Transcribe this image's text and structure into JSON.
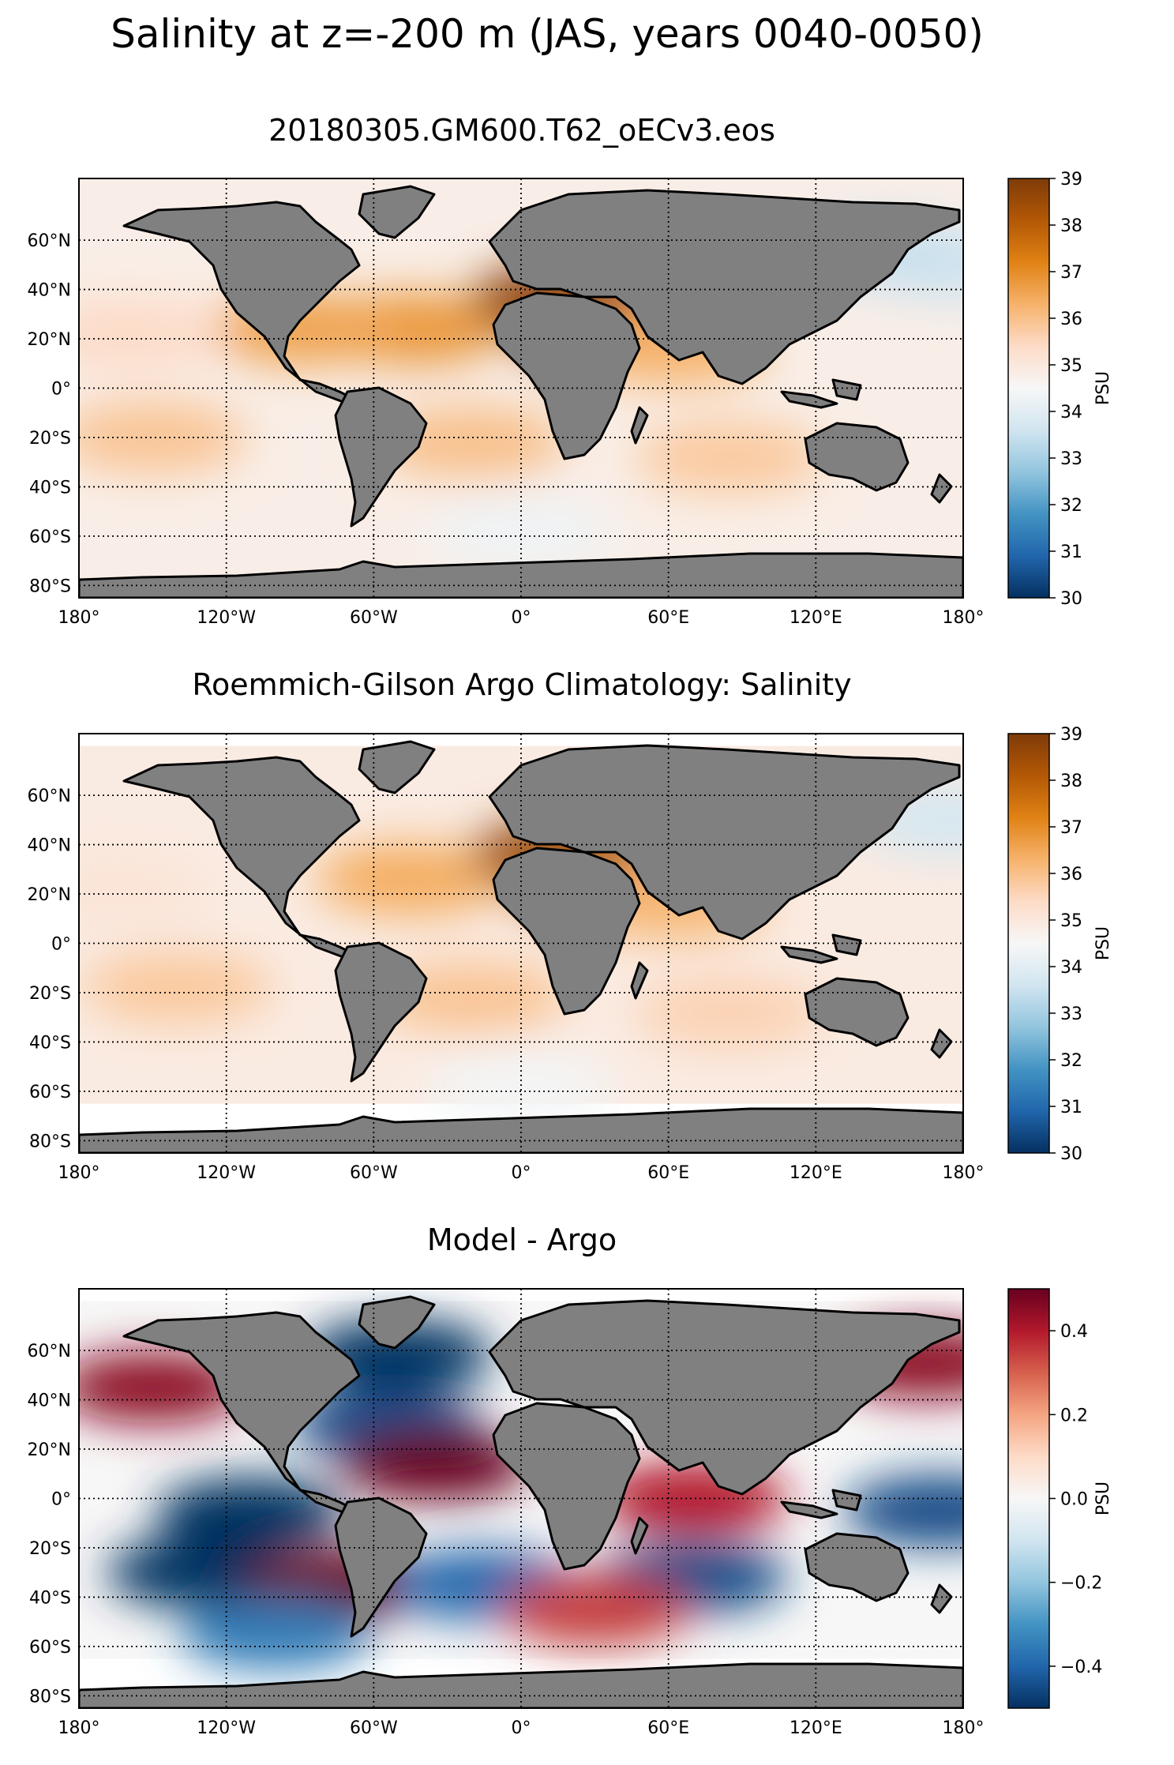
{
  "figure": {
    "suptitle": "Salinity at z=-200 m (JAS, years 0040-0050)"
  },
  "colors": {
    "land": "#808080",
    "coast": "#000000",
    "grid": "#000000"
  },
  "axes_ticks": {
    "lon": [
      "180°",
      "120°W",
      "60°W",
      "0°",
      "60°E",
      "120°E",
      "180°"
    ],
    "lat": [
      "60°N",
      "40°N",
      "20°N",
      "0°",
      "20°S",
      "40°S",
      "60°S",
      "80°S"
    ]
  },
  "chart_data": [
    {
      "type": "heatmap",
      "id": "model",
      "title": "20180305.GM600.T62_oECv3.eos",
      "projection": "equirectangular",
      "lon_range": [
        -180,
        180
      ],
      "lat_range": [
        -85,
        85
      ],
      "colorbar": {
        "label": "PSU",
        "vmin": 30,
        "vmax": 39,
        "ticks": [
          "30",
          "31",
          "32",
          "33",
          "34",
          "35",
          "36",
          "37",
          "38",
          "39"
        ],
        "cmap": [
          "#053061",
          "#2166ac",
          "#4393c3",
          "#92c5de",
          "#d1e5f0",
          "#f7f7f7",
          "#fddbc7",
          "#f6b26b",
          "#e08214",
          "#b35806",
          "#7f3b08"
        ]
      },
      "background_value": 34.8,
      "features": [
        {
          "name": "north-atlantic-subtropical",
          "lon": -45,
          "lat": 24,
          "value": 36.8
        },
        {
          "name": "gulf-of-mexico",
          "lon": -88,
          "lat": 24,
          "value": 36.6
        },
        {
          "name": "mediterranean",
          "lon": 18,
          "lat": 36,
          "value": 38.8
        },
        {
          "name": "red-sea",
          "lon": 38,
          "lat": 20,
          "value": 38.0
        },
        {
          "name": "arabian-sea",
          "lon": 62,
          "lat": 16,
          "value": 36.3
        },
        {
          "name": "south-pacific-gyre",
          "lon": -150,
          "lat": -20,
          "value": 35.9
        },
        {
          "name": "south-atlantic-gyre",
          "lon": -20,
          "lat": -22,
          "value": 36.0
        },
        {
          "name": "south-indian-gyre",
          "lon": 85,
          "lat": -28,
          "value": 35.8
        },
        {
          "name": "north-pacific-gyre",
          "lon": -160,
          "lat": 22,
          "value": 35.4
        },
        {
          "name": "southern-ocean",
          "lon": 0,
          "lat": -58,
          "value": 34.3
        },
        {
          "name": "north-pacific-subpolar",
          "lon": 175,
          "lat": 50,
          "value": 33.6
        },
        {
          "name": "sea-of-okhotsk",
          "lon": 150,
          "lat": 55,
          "value": 33.5
        }
      ]
    },
    {
      "type": "heatmap",
      "id": "argo",
      "title": "Roemmich-Gilson Argo Climatology: Salinity",
      "projection": "equirectangular",
      "lon_range": [
        -180,
        180
      ],
      "lat_range": [
        -85,
        85
      ],
      "data_lat_range": [
        -65,
        80
      ],
      "colorbar": {
        "label": "PSU",
        "vmin": 30,
        "vmax": 39,
        "ticks": [
          "30",
          "31",
          "32",
          "33",
          "34",
          "35",
          "36",
          "37",
          "38",
          "39"
        ],
        "cmap": [
          "#053061",
          "#2166ac",
          "#4393c3",
          "#92c5de",
          "#d1e5f0",
          "#f7f7f7",
          "#fddbc7",
          "#f6b26b",
          "#e08214",
          "#b35806",
          "#7f3b08"
        ]
      },
      "background_value": 34.9,
      "features": [
        {
          "name": "north-atlantic-subtropical",
          "lon": -45,
          "lat": 26,
          "value": 36.4
        },
        {
          "name": "mediterranean",
          "lon": 18,
          "lat": 36,
          "value": 38.6
        },
        {
          "name": "red-sea",
          "lon": 38,
          "lat": 20,
          "value": 37.5
        },
        {
          "name": "arabian-sea",
          "lon": 62,
          "lat": 16,
          "value": 36.2
        },
        {
          "name": "south-pacific-gyre",
          "lon": -140,
          "lat": -18,
          "value": 35.8
        },
        {
          "name": "south-atlantic-gyre",
          "lon": -20,
          "lat": -22,
          "value": 35.9
        },
        {
          "name": "south-indian-gyre",
          "lon": 85,
          "lat": -28,
          "value": 35.6
        },
        {
          "name": "north-pacific-gyre",
          "lon": -165,
          "lat": 22,
          "value": 35.1
        },
        {
          "name": "southern-ocean",
          "lon": 0,
          "lat": -58,
          "value": 34.4
        },
        {
          "name": "north-pacific-subpolar",
          "lon": 175,
          "lat": 50,
          "value": 33.7
        }
      ]
    },
    {
      "type": "heatmap",
      "id": "diff",
      "title": "Model - Argo",
      "projection": "equirectangular",
      "lon_range": [
        -180,
        180
      ],
      "lat_range": [
        -85,
        85
      ],
      "data_lat_range": [
        -65,
        80
      ],
      "colorbar": {
        "label": "PSU",
        "vmin": -0.5,
        "vmax": 0.5,
        "ticks": [
          "−0.4",
          "−0.2",
          "0.0",
          "0.2",
          "0.4"
        ],
        "tick_values": [
          -0.4,
          -0.2,
          0.0,
          0.2,
          0.4
        ],
        "cmap": [
          "#053061",
          "#2166ac",
          "#4393c3",
          "#92c5de",
          "#d1e5f0",
          "#f7f7f7",
          "#fddbc7",
          "#f4a582",
          "#d6604d",
          "#b2182b",
          "#67001f"
        ]
      },
      "background_value": 0.0,
      "features": [
        {
          "name": "eq-pacific-band",
          "lon": -110,
          "lat": -6,
          "value": -0.5
        },
        {
          "name": "eq-pacific-band-west",
          "lon": 170,
          "lat": -5,
          "value": -0.45
        },
        {
          "name": "south-pacific-diagonal",
          "lon": -130,
          "lat": -30,
          "value": -0.5
        },
        {
          "name": "north-pacific-east",
          "lon": -150,
          "lat": 45,
          "value": 0.45
        },
        {
          "name": "north-pacific-west",
          "lon": 165,
          "lat": 55,
          "value": 0.45
        },
        {
          "name": "labrador-sea",
          "lon": -50,
          "lat": 58,
          "value": -0.5
        },
        {
          "name": "gulf-stream-south",
          "lon": -55,
          "lat": 30,
          "value": -0.45
        },
        {
          "name": "tropical-atlantic-north",
          "lon": -35,
          "lat": 14,
          "value": 0.5
        },
        {
          "name": "chile-coast",
          "lon": -75,
          "lat": -35,
          "value": 0.5
        },
        {
          "name": "south-atlantic-band",
          "lon": -15,
          "lat": -35,
          "value": -0.4
        },
        {
          "name": "indian-ocean-north",
          "lon": 70,
          "lat": 0,
          "value": 0.4
        },
        {
          "name": "indian-ocean-south",
          "lon": 70,
          "lat": -32,
          "value": -0.45
        },
        {
          "name": "southern-ocean-red",
          "lon": 30,
          "lat": -45,
          "value": 0.35
        },
        {
          "name": "southern-ocean-blue",
          "lon": -100,
          "lat": -55,
          "value": -0.35
        }
      ]
    }
  ]
}
